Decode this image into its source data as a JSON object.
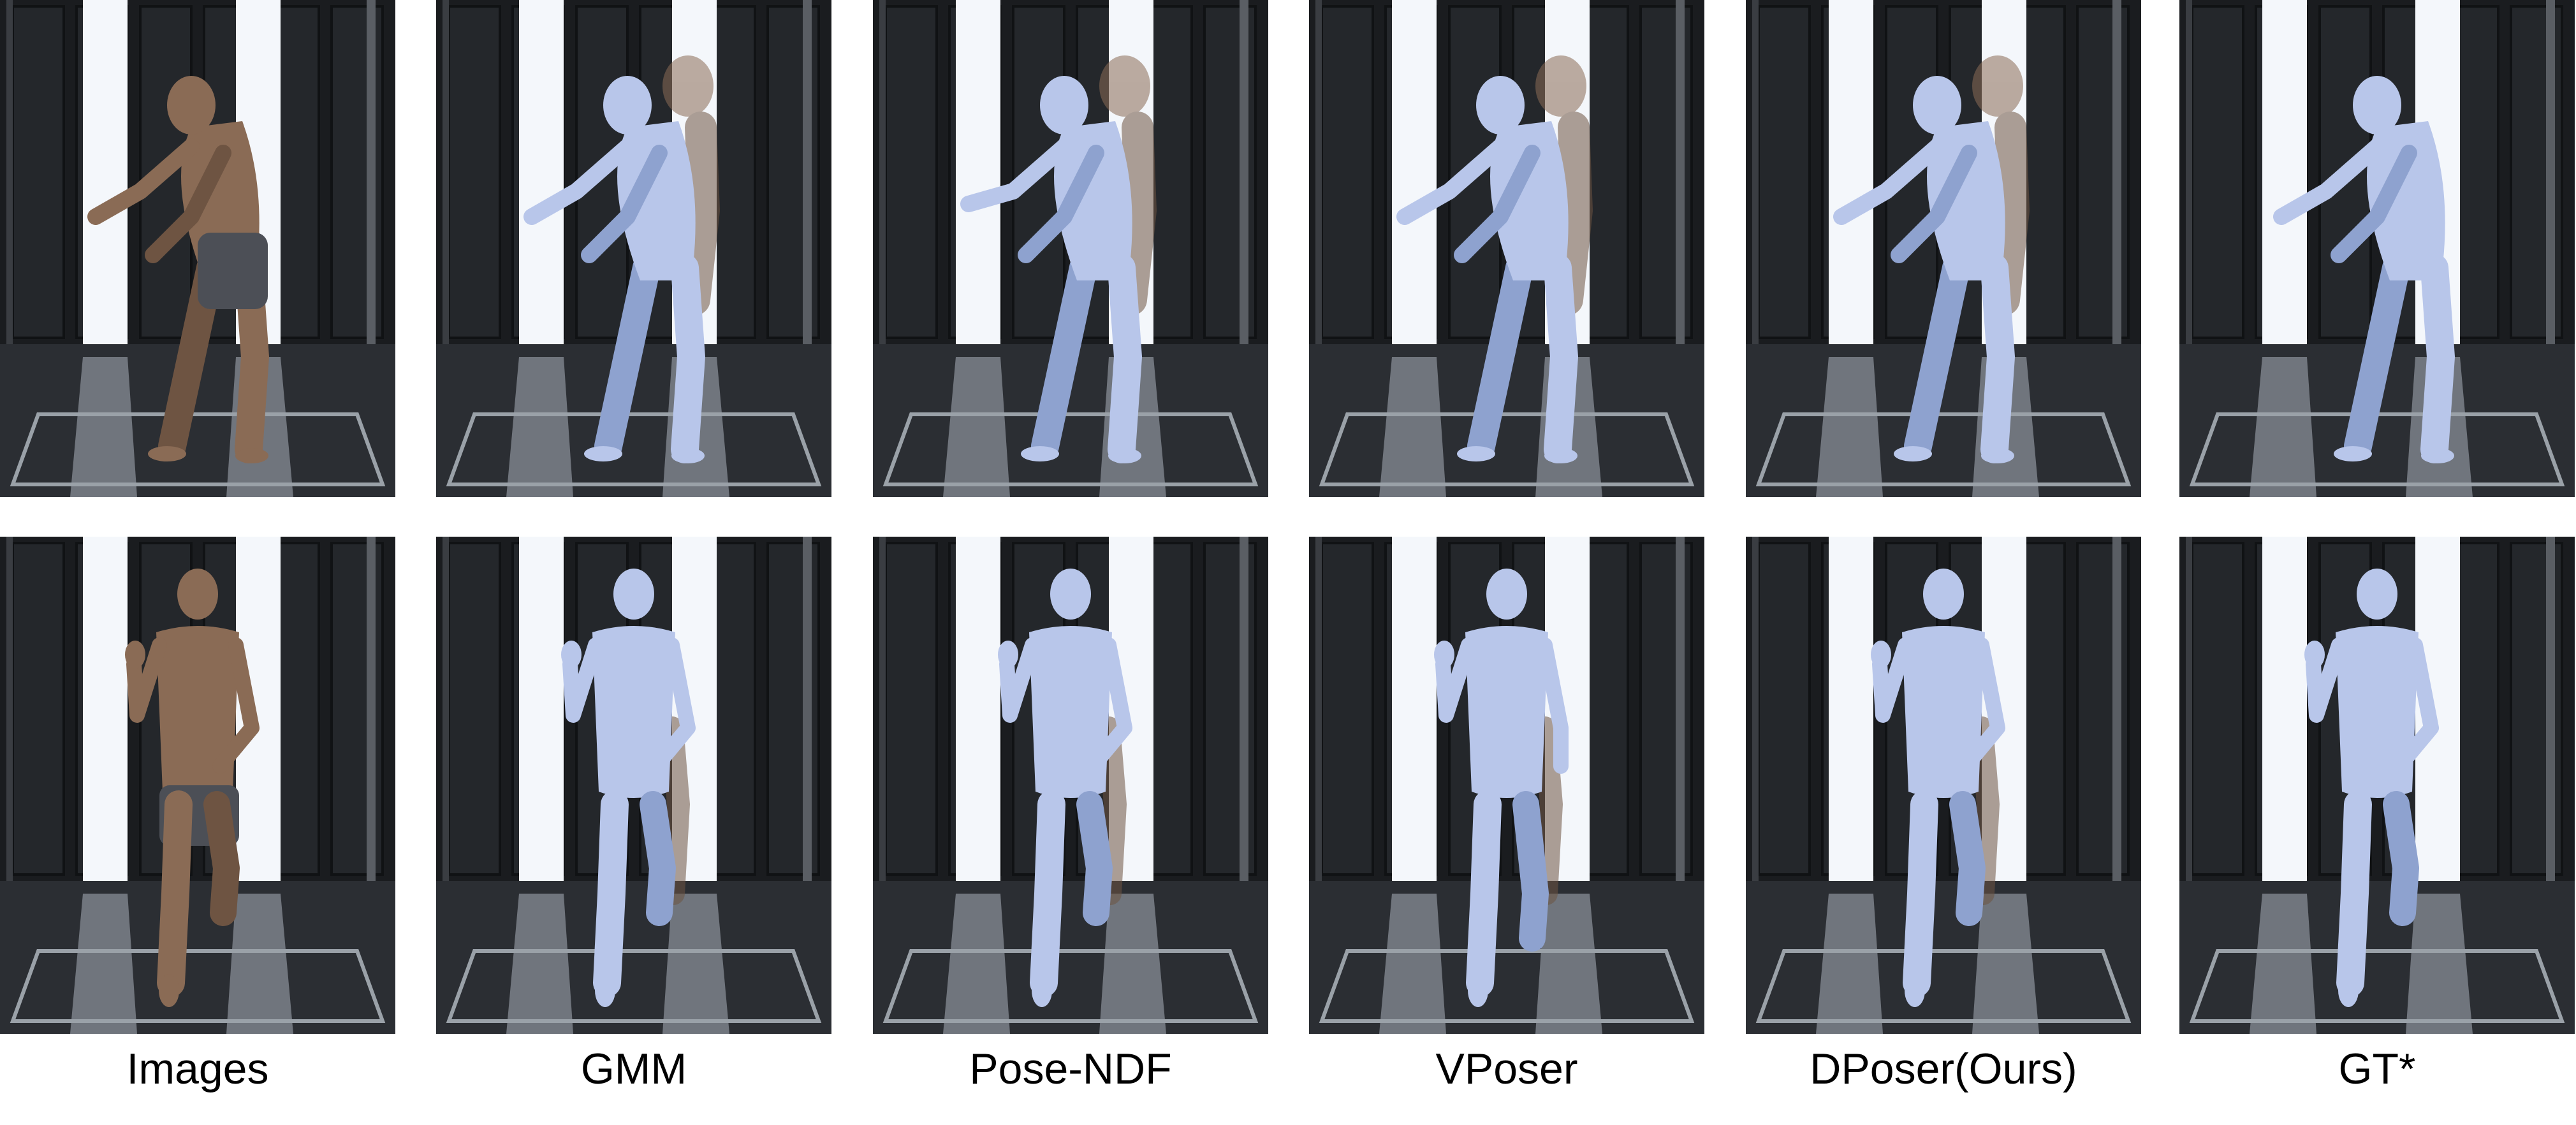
{
  "columns": [
    {
      "key": "images",
      "label": "Images",
      "type": "photo"
    },
    {
      "key": "gmm",
      "label": "GMM",
      "type": "mesh"
    },
    {
      "key": "posendf",
      "label": "Pose-NDF",
      "type": "mesh"
    },
    {
      "key": "vposer",
      "label": "VPoser",
      "type": "mesh"
    },
    {
      "key": "dposer",
      "label": "DPoser(Ours)",
      "type": "mesh"
    },
    {
      "key": "gt",
      "label": "GT*",
      "type": "mesh"
    }
  ],
  "rows": [
    {
      "key": "row-1",
      "pose": "crouch-side"
    },
    {
      "key": "row-2",
      "pose": "stand-front-knee-up"
    }
  ],
  "colors": {
    "background": "#ffffff",
    "studio_dark": "#1a1c1f",
    "light_panel": "#f4f7fb",
    "floor": "#2b2e33",
    "mesh": "#b8c6ea",
    "mesh_shade": "#8ea2cf",
    "skin": "#8a6b55",
    "shorts": "#4c4f56"
  }
}
